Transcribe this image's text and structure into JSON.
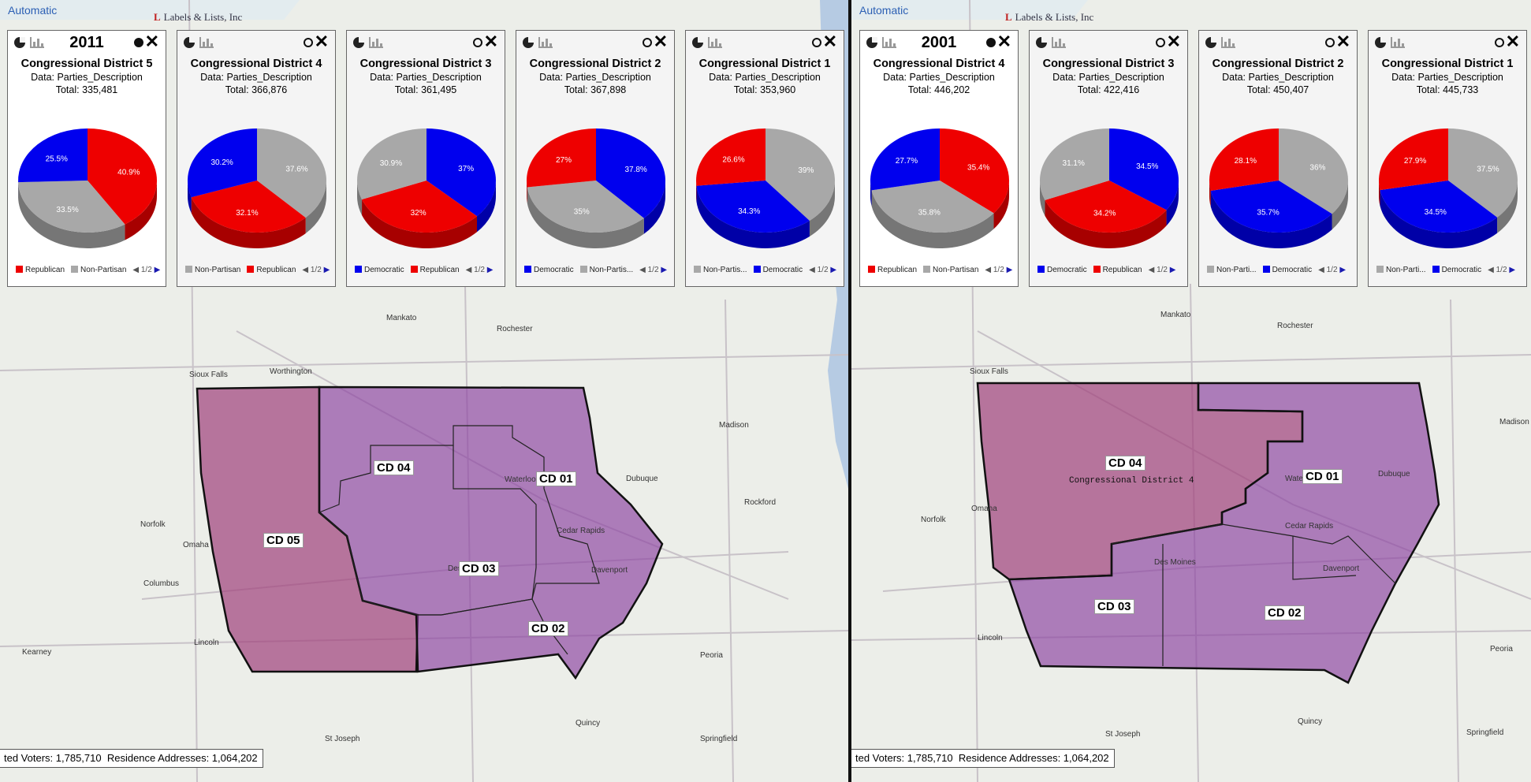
{
  "map_left": {
    "automatic_label": "Automatic",
    "logo": "Labels & Lists, Inc",
    "status": {
      "voters": "ted Voters: 1,785,710",
      "residence": "Residence Addresses: 1,064,202"
    },
    "cd_labels": [
      "CD 04",
      "CD 01",
      "CD 05",
      "CD 03",
      "CD 02"
    ],
    "cards": [
      {
        "year": "2011",
        "title": "Congressional District 5",
        "data_line": "Data: Parties_Description",
        "total": "Total: 335,481",
        "slices": [
          {
            "label": "Republican",
            "value": 40.9,
            "color": "#ee0000",
            "pct": "40.9%"
          },
          {
            "label": "Non-Partisan",
            "value": 33.5,
            "color": "#a8a8a8",
            "pct": "33.5%"
          },
          {
            "label": "Democratic",
            "value": 25.5,
            "color": "#0000ee",
            "pct": "25.5%"
          }
        ],
        "legend": [
          "Republican",
          "Non-Partisan"
        ],
        "legend_colors": [
          "#ee0000",
          "#a8a8a8"
        ],
        "page": "1/2"
      },
      {
        "year": "",
        "title": "Congressional District 4",
        "data_line": "Data: Parties_Description",
        "total": "Total: 366,876",
        "slices": [
          {
            "label": "Non-Partisan",
            "value": 37.6,
            "color": "#a8a8a8",
            "pct": "37.6%"
          },
          {
            "label": "Republican",
            "value": 32.1,
            "color": "#ee0000",
            "pct": "32.1%"
          },
          {
            "label": "Democratic",
            "value": 30.2,
            "color": "#0000ee",
            "pct": "30.2%"
          }
        ],
        "legend": [
          "Non-Partisan",
          "Republican"
        ],
        "legend_colors": [
          "#a8a8a8",
          "#ee0000"
        ],
        "page": "1/2"
      },
      {
        "year": "",
        "title": "Congressional District 3",
        "data_line": "Data: Parties_Description",
        "total": "Total: 361,495",
        "slices": [
          {
            "label": "Democratic",
            "value": 37,
            "color": "#0000ee",
            "pct": "37%"
          },
          {
            "label": "Republican",
            "value": 32,
            "color": "#ee0000",
            "pct": "32%"
          },
          {
            "label": "Non-Partisan",
            "value": 30.9,
            "color": "#a8a8a8",
            "pct": "30.9%"
          }
        ],
        "legend": [
          "Democratic",
          "Republican"
        ],
        "legend_colors": [
          "#0000ee",
          "#ee0000"
        ],
        "page": "1/2"
      },
      {
        "year": "",
        "title": "Congressional District 2",
        "data_line": "Data: Parties_Description",
        "total": "Total: 367,898",
        "slices": [
          {
            "label": "Democratic",
            "value": 37.8,
            "color": "#0000ee",
            "pct": "37.8%"
          },
          {
            "label": "Non-Partisan",
            "value": 35,
            "color": "#a8a8a8",
            "pct": "35%"
          },
          {
            "label": "Republican",
            "value": 27,
            "color": "#ee0000",
            "pct": "27%"
          }
        ],
        "legend": [
          "Democratic",
          "Non-Partis..."
        ],
        "legend_colors": [
          "#0000ee",
          "#a8a8a8"
        ],
        "page": "1/2"
      },
      {
        "year": "",
        "title": "Congressional District 1",
        "data_line": "Data: Parties_Description",
        "total": "Total: 353,960",
        "slices": [
          {
            "label": "Non-Partisan",
            "value": 39,
            "color": "#a8a8a8",
            "pct": "39%"
          },
          {
            "label": "Democratic",
            "value": 34.3,
            "color": "#0000ee",
            "pct": "34.3%"
          },
          {
            "label": "Republican",
            "value": 26.6,
            "color": "#ee0000",
            "pct": "26.6%"
          }
        ],
        "legend": [
          "Non-Partis...",
          "Democratic"
        ],
        "legend_colors": [
          "#a8a8a8",
          "#0000ee"
        ],
        "page": "1/2"
      }
    ]
  },
  "map_right": {
    "automatic_label": "Automatic",
    "logo": "Labels & Lists, Inc",
    "status": {
      "voters": "ted Voters: 1,785,710",
      "residence": "Residence Addresses: 1,064,202"
    },
    "cd_labels": [
      "CD 04",
      "CD 01",
      "CD 03",
      "CD 02"
    ],
    "cd_sub": "Congressional District 4",
    "cards": [
      {
        "year": "2001",
        "title": "Congressional District 4",
        "data_line": "Data: Parties_Description",
        "total": "Total: 446,202",
        "slices": [
          {
            "label": "Republican",
            "value": 35.4,
            "color": "#ee0000",
            "pct": "35.4%"
          },
          {
            "label": "Non-Partisan",
            "value": 35.8,
            "color": "#a8a8a8",
            "pct": "35.8%"
          },
          {
            "label": "Democratic",
            "value": 27.7,
            "color": "#0000ee",
            "pct": "27.7%"
          }
        ],
        "legend": [
          "Republican",
          "Non-Partisan"
        ],
        "legend_colors": [
          "#ee0000",
          "#a8a8a8"
        ],
        "page": "1/2"
      },
      {
        "year": "",
        "title": "Congressional District 3",
        "data_line": "Data: Parties_Description",
        "total": "Total: 422,416",
        "slices": [
          {
            "label": "Democratic",
            "value": 34.5,
            "color": "#0000ee",
            "pct": "34.5%"
          },
          {
            "label": "Republican",
            "value": 34.2,
            "color": "#ee0000",
            "pct": "34.2%"
          },
          {
            "label": "Non-Partisan",
            "value": 31.1,
            "color": "#a8a8a8",
            "pct": "31.1%"
          }
        ],
        "legend": [
          "Democratic",
          "Republican"
        ],
        "legend_colors": [
          "#0000ee",
          "#ee0000"
        ],
        "page": "1/2"
      },
      {
        "year": "",
        "title": "Congressional District 2",
        "data_line": "Data: Parties_Description",
        "total": "Total: 450,407",
        "slices": [
          {
            "label": "Non-Partisan",
            "value": 36,
            "color": "#a8a8a8",
            "pct": "36%"
          },
          {
            "label": "Democratic",
            "value": 35.7,
            "color": "#0000ee",
            "pct": "35.7%"
          },
          {
            "label": "Republican",
            "value": 28.1,
            "color": "#ee0000",
            "pct": "28.1%"
          }
        ],
        "legend": [
          "Non-Parti...",
          "Democratic"
        ],
        "legend_colors": [
          "#a8a8a8",
          "#0000ee"
        ],
        "page": "1/2"
      },
      {
        "year": "",
        "title": "Congressional District 1",
        "data_line": "Data: Parties_Description",
        "total": "Total: 445,733",
        "slices": [
          {
            "label": "Non-Partisan",
            "value": 37.5,
            "color": "#a8a8a8",
            "pct": "37.5%"
          },
          {
            "label": "Democratic",
            "value": 34.5,
            "color": "#0000ee",
            "pct": "34.5%"
          },
          {
            "label": "Republican",
            "value": 27.9,
            "color": "#ee0000",
            "pct": "27.9%"
          }
        ],
        "legend": [
          "Non-Parti...",
          "Democratic"
        ],
        "legend_colors": [
          "#a8a8a8",
          "#0000ee"
        ],
        "page": "1/2"
      }
    ]
  },
  "cities_left": [
    "Sioux Falls",
    "Omaha",
    "Lincoln",
    "Des Moines",
    "Cedar Rapids",
    "Madison",
    "Rockford",
    "Peoria",
    "Dubuque",
    "Rochester",
    "Mankato",
    "Worthington",
    "Waterloo",
    "Davenport",
    "Quincy",
    "Springfield",
    "St Joseph",
    "Norfolk",
    "Columbus",
    "Kearney"
  ],
  "cities_right": [
    "Sioux Falls",
    "Omaha",
    "Lincoln",
    "Des Moines",
    "Cedar Rapids",
    "Madison",
    "Peoria",
    "Dubuque",
    "Rochester",
    "Mankato",
    "Waterloo",
    "Davenport",
    "Quincy",
    "Springfield",
    "St Joseph",
    "Norfolk"
  ],
  "colors": {
    "district_fill": "#8a3fa0",
    "district_fill_cd05": "#a0407a",
    "outline": "#111111"
  }
}
